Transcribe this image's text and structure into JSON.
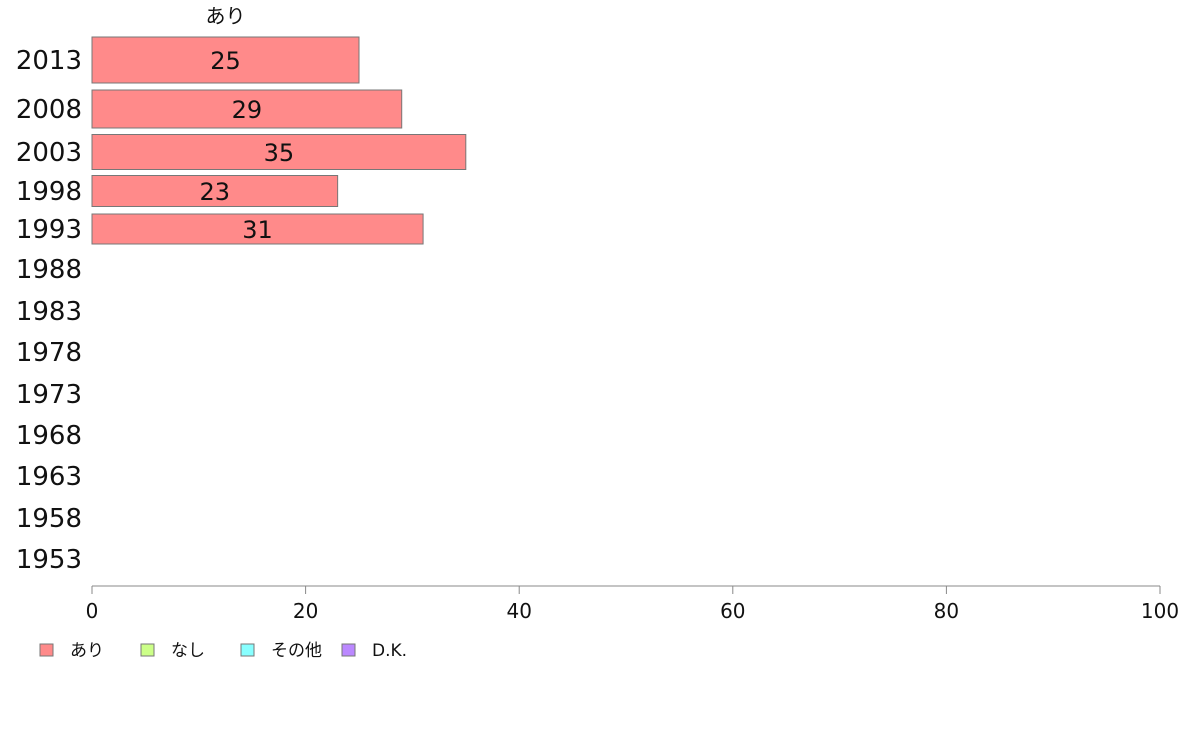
{
  "chart_data": {
    "type": "bar",
    "orientation": "horizontal",
    "stacked": true,
    "categories": [
      "2013",
      "2008",
      "2003",
      "1998",
      "1993",
      "1988",
      "1983",
      "1978",
      "1973",
      "1968",
      "1963",
      "1958",
      "1953"
    ],
    "series": [
      {
        "name": "あり",
        "color": "#ff8a8a",
        "values": [
          25,
          29,
          35,
          23,
          31,
          null,
          null,
          null,
          null,
          null,
          null,
          null,
          null
        ]
      },
      {
        "name": "なし",
        "color": "#ccff88",
        "values": [
          null,
          null,
          null,
          null,
          null,
          null,
          null,
          null,
          null,
          null,
          null,
          null,
          null
        ]
      },
      {
        "name": "その他",
        "color": "#88ffff",
        "values": [
          null,
          null,
          null,
          null,
          null,
          null,
          null,
          null,
          null,
          null,
          null,
          null,
          null
        ]
      },
      {
        "name": "D.K.",
        "color": "#bb88ff",
        "values": [
          null,
          null,
          null,
          null,
          null,
          null,
          null,
          null,
          null,
          null,
          null,
          null,
          null
        ]
      }
    ],
    "header_labels": [
      "あり"
    ],
    "xlim": [
      0,
      100
    ],
    "xticks": [
      0,
      20,
      40,
      60,
      80,
      100
    ],
    "legend_position": "bottom-left",
    "grid": false
  }
}
